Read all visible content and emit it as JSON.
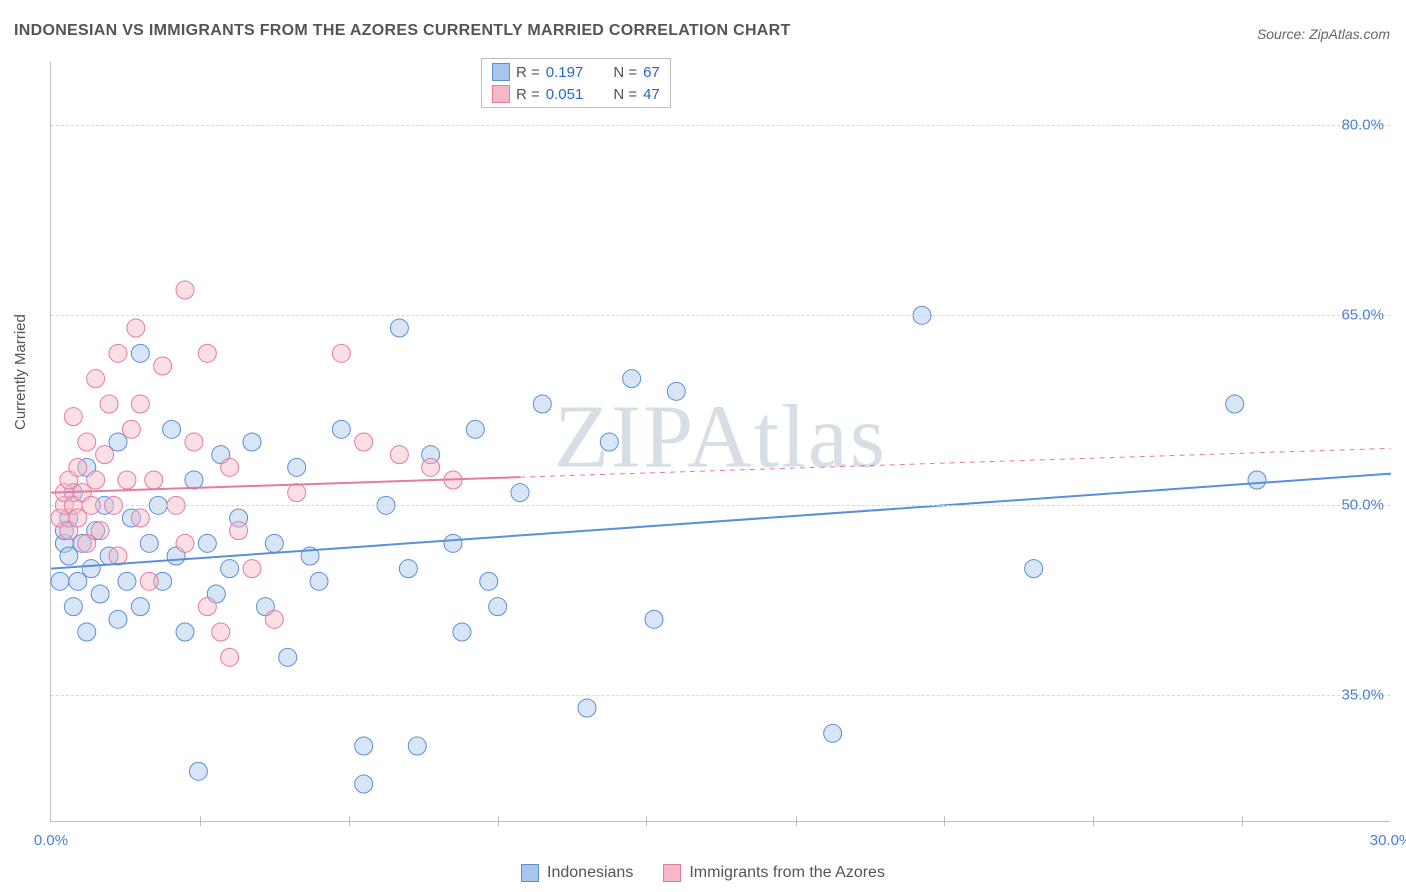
{
  "title": "INDONESIAN VS IMMIGRANTS FROM THE AZORES CURRENTLY MARRIED CORRELATION CHART",
  "source": "Source: ZipAtlas.com",
  "watermark": "ZIPAtlas",
  "ylabel": "Currently Married",
  "chart": {
    "type": "scatter",
    "xlim": [
      0,
      30
    ],
    "ylim": [
      25,
      85
    ],
    "x_ticks": [
      0,
      30
    ],
    "x_tick_labels": [
      "0.0%",
      "30.0%"
    ],
    "y_ticks": [
      35,
      50,
      65,
      80
    ],
    "y_tick_labels": [
      "35.0%",
      "50.0%",
      "65.0%",
      "80.0%"
    ],
    "minor_x_ticks": [
      3.33,
      6.67,
      10,
      13.33,
      16.67,
      20,
      23.33,
      26.67
    ],
    "background_color": "#ffffff",
    "grid_color": "#d8d8d8",
    "axis_color": "#bfbfbf",
    "tick_label_color": "#4a7fd6",
    "marker_radius": 9,
    "marker_opacity": 0.45,
    "line_width": 2
  },
  "series": [
    {
      "name": "Indonesians",
      "color_fill": "#a8c6ec",
      "color_stroke": "#5b8fd6",
      "R": "0.197",
      "N": "67",
      "trend": {
        "x1": 0,
        "y1": 45.0,
        "x2": 30,
        "y2": 52.5,
        "solid_until_x": 30
      },
      "points": [
        [
          0.2,
          44
        ],
        [
          0.3,
          47
        ],
        [
          0.3,
          48
        ],
        [
          0.4,
          46
        ],
        [
          0.4,
          49
        ],
        [
          0.5,
          42
        ],
        [
          0.5,
          51
        ],
        [
          0.6,
          44
        ],
        [
          0.7,
          47
        ],
        [
          0.8,
          40
        ],
        [
          0.8,
          53
        ],
        [
          0.9,
          45
        ],
        [
          1.0,
          48
        ],
        [
          1.1,
          43
        ],
        [
          1.2,
          50
        ],
        [
          1.3,
          46
        ],
        [
          1.5,
          41
        ],
        [
          1.5,
          55
        ],
        [
          1.7,
          44
        ],
        [
          1.8,
          49
        ],
        [
          2.0,
          42
        ],
        [
          2.0,
          62
        ],
        [
          2.2,
          47
        ],
        [
          2.4,
          50
        ],
        [
          2.5,
          44
        ],
        [
          2.7,
          56
        ],
        [
          2.8,
          46
        ],
        [
          3.0,
          40
        ],
        [
          3.2,
          52
        ],
        [
          3.3,
          29
        ],
        [
          3.5,
          47
        ],
        [
          3.7,
          43
        ],
        [
          3.8,
          54
        ],
        [
          4.0,
          45
        ],
        [
          4.2,
          49
        ],
        [
          4.5,
          55
        ],
        [
          4.8,
          42
        ],
        [
          5.0,
          47
        ],
        [
          5.3,
          38
        ],
        [
          5.5,
          53
        ],
        [
          5.8,
          46
        ],
        [
          6.0,
          44
        ],
        [
          6.5,
          56
        ],
        [
          7.0,
          31
        ],
        [
          7.0,
          28
        ],
        [
          7.5,
          50
        ],
        [
          7.8,
          64
        ],
        [
          8.0,
          45
        ],
        [
          8.2,
          31
        ],
        [
          8.5,
          54
        ],
        [
          9.0,
          47
        ],
        [
          9.2,
          40
        ],
        [
          9.5,
          56
        ],
        [
          9.8,
          44
        ],
        [
          10.0,
          42
        ],
        [
          10.5,
          51
        ],
        [
          11.0,
          58
        ],
        [
          12.0,
          34
        ],
        [
          12.5,
          55
        ],
        [
          13.0,
          60
        ],
        [
          13.5,
          41
        ],
        [
          14.0,
          59
        ],
        [
          17.5,
          32
        ],
        [
          19.5,
          65
        ],
        [
          22.0,
          45
        ],
        [
          26.5,
          58
        ],
        [
          27.0,
          52
        ]
      ]
    },
    {
      "name": "Immigrants from the Azores",
      "color_fill": "#f4b8c6",
      "color_stroke": "#e67ba0",
      "R": "0.051",
      "N": "47",
      "trend": {
        "x1": 0,
        "y1": 51.0,
        "x2": 30,
        "y2": 54.5,
        "solid_until_x": 10.5
      },
      "points": [
        [
          0.2,
          49
        ],
        [
          0.3,
          50
        ],
        [
          0.3,
          51
        ],
        [
          0.4,
          48
        ],
        [
          0.4,
          52
        ],
        [
          0.5,
          50
        ],
        [
          0.5,
          57
        ],
        [
          0.6,
          49
        ],
        [
          0.6,
          53
        ],
        [
          0.7,
          51
        ],
        [
          0.8,
          47
        ],
        [
          0.8,
          55
        ],
        [
          0.9,
          50
        ],
        [
          1.0,
          52
        ],
        [
          1.0,
          60
        ],
        [
          1.1,
          48
        ],
        [
          1.2,
          54
        ],
        [
          1.3,
          58
        ],
        [
          1.4,
          50
        ],
        [
          1.5,
          46
        ],
        [
          1.5,
          62
        ],
        [
          1.7,
          52
        ],
        [
          1.8,
          56
        ],
        [
          1.9,
          64
        ],
        [
          2.0,
          49
        ],
        [
          2.0,
          58
        ],
        [
          2.2,
          44
        ],
        [
          2.3,
          52
        ],
        [
          2.5,
          61
        ],
        [
          2.8,
          50
        ],
        [
          3.0,
          67
        ],
        [
          3.0,
          47
        ],
        [
          3.2,
          55
        ],
        [
          3.5,
          42
        ],
        [
          3.5,
          62
        ],
        [
          3.8,
          40
        ],
        [
          4.0,
          53
        ],
        [
          4.2,
          48
        ],
        [
          4.5,
          45
        ],
        [
          5.0,
          41
        ],
        [
          5.5,
          51
        ],
        [
          6.5,
          62
        ],
        [
          7.0,
          55
        ],
        [
          7.8,
          54
        ],
        [
          8.5,
          53
        ],
        [
          9.0,
          52
        ],
        [
          4.0,
          38
        ]
      ]
    }
  ],
  "stats_legend": {
    "R_label": "R  =",
    "N_label": "N  ="
  },
  "bottom_legend": {
    "series1": "Indonesians",
    "series2": "Immigrants from the Azores"
  }
}
